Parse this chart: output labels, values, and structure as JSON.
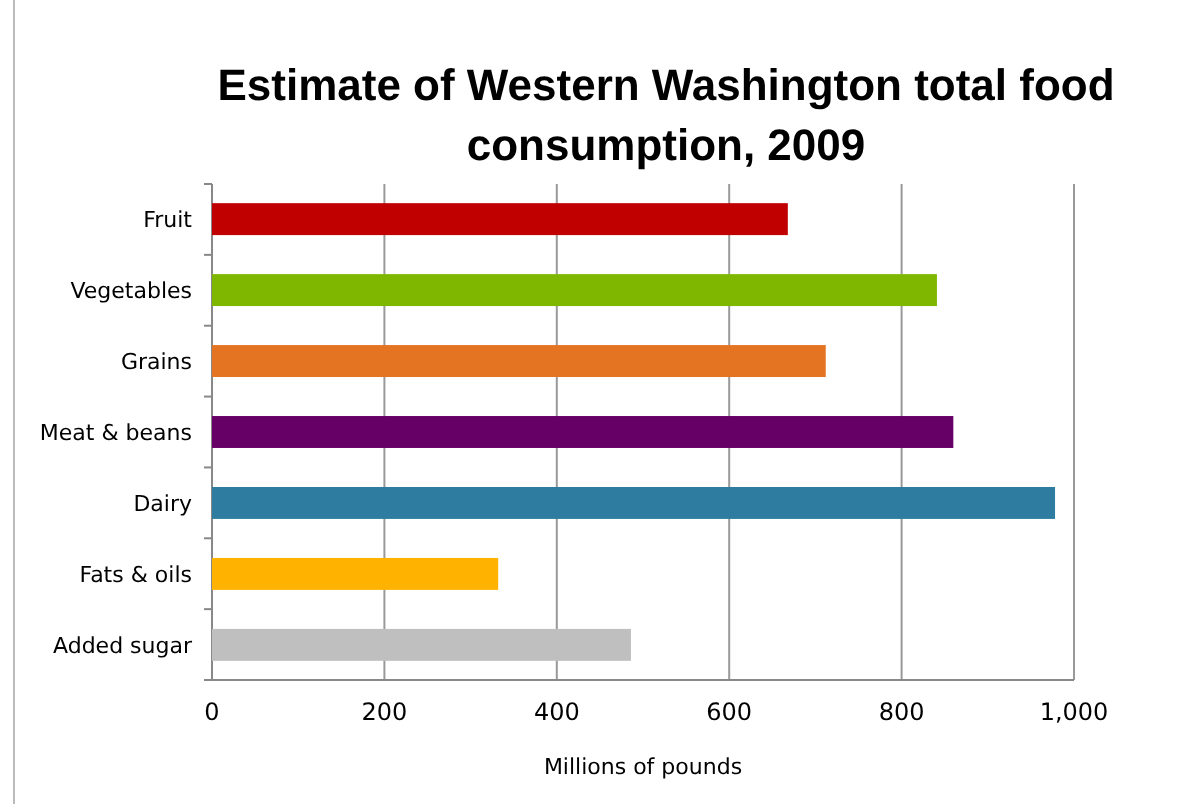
{
  "chart_data": {
    "type": "bar",
    "orientation": "horizontal",
    "title": "Estimate of Western Washington total food consumption, 2009",
    "xlabel": "Millions of pounds",
    "categories": [
      "Fruit",
      "Vegetables",
      "Grains",
      "Meat & beans",
      "Dairy",
      "Fats & oils",
      "Added sugar"
    ],
    "values": [
      668,
      841,
      712,
      860,
      978,
      332,
      486
    ],
    "colors": [
      "#c00000",
      "#7fb700",
      "#e47421",
      "#660066",
      "#2e7ca0",
      "#ffb300",
      "#bfbfbf"
    ],
    "xlim": [
      0,
      1000
    ],
    "xticks": [
      0,
      200,
      400,
      600,
      800,
      {
        "value": 1000,
        "label": "1,000"
      }
    ],
    "grid": "x"
  }
}
